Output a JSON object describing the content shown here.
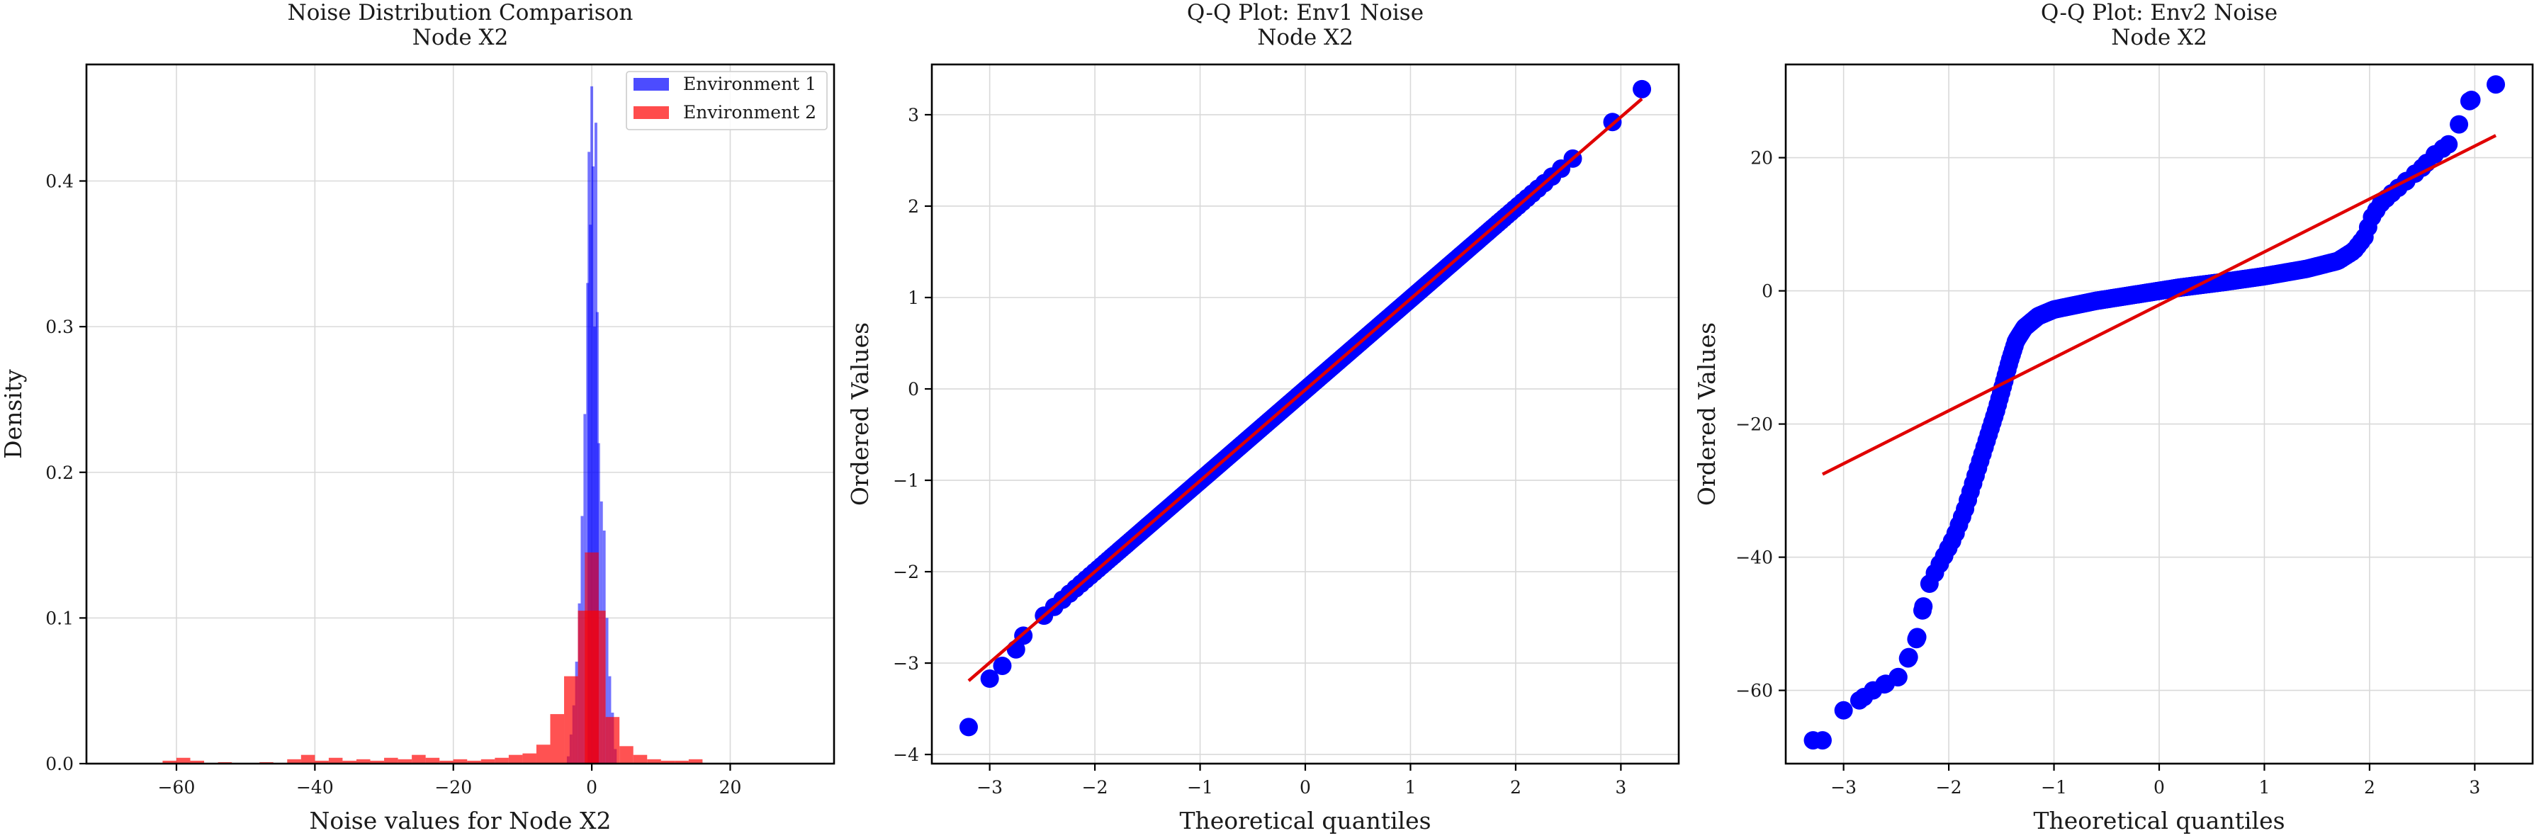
{
  "chart_data": [
    {
      "type": "histogram",
      "title": "Noise Distribution Comparison",
      "subtitle": "Node X2",
      "xlabel": "Noise values for Node X2",
      "ylabel": "Density",
      "xlim": [
        -73,
        35
      ],
      "ylim": [
        0,
        0.48
      ],
      "xticks": [
        -60,
        -40,
        -20,
        0,
        20
      ],
      "yticks": [
        0.0,
        0.1,
        0.2,
        0.3,
        0.4
      ],
      "xtick_labels": [
        "−60",
        "−40",
        "−20",
        "0",
        "20"
      ],
      "ytick_labels": [
        "0.0",
        "0.1",
        "0.2",
        "0.3",
        "0.4"
      ],
      "legend_position": "top-right",
      "series": [
        {
          "name": "Environment 1",
          "color": "#0000ff",
          "bins": [
            [
              -3.4,
              0.005
            ],
            [
              -3.0,
              0.02
            ],
            [
              -2.6,
              0.04
            ],
            [
              -2.2,
              0.07
            ],
            [
              -1.8,
              0.11
            ],
            [
              -1.4,
              0.17
            ],
            [
              -1.0,
              0.24
            ],
            [
              -0.6,
              0.33
            ],
            [
              -0.4,
              0.42
            ],
            [
              -0.2,
              0.37
            ],
            [
              0.0,
              0.465
            ],
            [
              0.2,
              0.41
            ],
            [
              0.4,
              0.3
            ],
            [
              0.6,
              0.44
            ],
            [
              0.8,
              0.31
            ],
            [
              1.0,
              0.22
            ],
            [
              1.4,
              0.18
            ],
            [
              1.8,
              0.16
            ],
            [
              2.2,
              0.1
            ],
            [
              2.6,
              0.06
            ],
            [
              3.0,
              0.035
            ],
            [
              3.4,
              0.01
            ]
          ],
          "bin_width": 0.4
        },
        {
          "name": "Environment 2",
          "color": "#ff0000",
          "bins": [
            [
              -61,
              0.002
            ],
            [
              -59,
              0.004
            ],
            [
              -57,
              0.002
            ],
            [
              -53,
              0.001
            ],
            [
              -47,
              0.001
            ],
            [
              -43,
              0.003
            ],
            [
              -41,
              0.006
            ],
            [
              -39,
              0.002
            ],
            [
              -37,
              0.004
            ],
            [
              -35,
              0.002
            ],
            [
              -33,
              0.003
            ],
            [
              -31,
              0.002
            ],
            [
              -29,
              0.004
            ],
            [
              -27,
              0.003
            ],
            [
              -25,
              0.006
            ],
            [
              -23,
              0.004
            ],
            [
              -21,
              0.002
            ],
            [
              -19,
              0.003
            ],
            [
              -17,
              0.002
            ],
            [
              -15,
              0.003
            ],
            [
              -13,
              0.004
            ],
            [
              -11,
              0.006
            ],
            [
              -9,
              0.007
            ],
            [
              -7,
              0.013
            ],
            [
              -5,
              0.034
            ],
            [
              -3,
              0.06
            ],
            [
              -1,
              0.105
            ],
            [
              1,
              0.105
            ],
            [
              3,
              0.032
            ],
            [
              5,
              0.012
            ],
            [
              7,
              0.006
            ],
            [
              9,
              0.003
            ],
            [
              11,
              0.002
            ],
            [
              13,
              0.002
            ],
            [
              15,
              0.003
            ]
          ],
          "bin_width": 2,
          "peak": {
            "x": 0,
            "width": 2,
            "value": 0.145
          }
        }
      ]
    },
    {
      "type": "scatter",
      "title": "Q-Q Plot: Env1 Noise",
      "subtitle": "Node X2",
      "xlabel": "Theoretical quantiles",
      "ylabel": "Ordered Values",
      "xlim": [
        -3.55,
        3.55
      ],
      "ylim": [
        -4.1,
        3.55
      ],
      "xticks": [
        -3,
        -2,
        -1,
        0,
        1,
        2,
        3
      ],
      "yticks": [
        -4,
        -3,
        -2,
        -1,
        0,
        1,
        2,
        3
      ],
      "xtick_labels": [
        "−3",
        "−2",
        "−1",
        "0",
        "1",
        "2",
        "3"
      ],
      "ytick_labels": [
        "−4",
        "−3",
        "−2",
        "−1",
        "0",
        "1",
        "2",
        "3"
      ],
      "n": 1000,
      "points_color": "#0000ff",
      "line_color": "#e00000",
      "fit_line": {
        "slope": 0.995,
        "intercept": -0.01
      },
      "deviations": [
        [
          -3.2,
          -3.7
        ],
        [
          -3.0,
          -3.17
        ],
        [
          -2.88,
          -3.03
        ],
        [
          -2.75,
          -2.85
        ],
        [
          -2.68,
          -2.7
        ],
        [
          3.2,
          3.28
        ],
        [
          2.92,
          2.92
        ]
      ],
      "qq_model": {
        "kind": "normal",
        "scale": 0.995,
        "shift": -0.01
      }
    },
    {
      "type": "scatter",
      "title": "Q-Q Plot: Env2 Noise",
      "subtitle": "Node X2",
      "xlabel": "Theoretical quantiles",
      "ylabel": "Ordered Values",
      "xlim": [
        -3.55,
        3.55
      ],
      "ylim": [
        -71,
        34
      ],
      "xticks": [
        -3,
        -2,
        -1,
        0,
        1,
        2,
        3
      ],
      "yticks": [
        -60,
        -40,
        -20,
        0,
        20
      ],
      "xtick_labels": [
        "−3",
        "−2",
        "−1",
        "0",
        "1",
        "2",
        "3"
      ],
      "ytick_labels": [
        "−60",
        "−40",
        "−20",
        "0",
        "20"
      ],
      "n": 1000,
      "points_color": "#0000ff",
      "line_color": "#e00000",
      "fit_line": {
        "slope": 7.95,
        "intercept": -2.1
      },
      "qq_curve": [
        [
          -3.2,
          -67.5
        ],
        [
          -3.0,
          -63
        ],
        [
          -2.85,
          -61.5
        ],
        [
          -2.72,
          -60
        ],
        [
          -2.6,
          -59
        ],
        [
          -2.48,
          -58
        ],
        [
          -2.38,
          -55
        ],
        [
          -2.3,
          -52
        ],
        [
          -2.25,
          -48
        ],
        [
          -2.2,
          -44.5
        ],
        [
          -2.12,
          -42
        ],
        [
          -2.05,
          -40
        ],
        [
          -1.95,
          -37
        ],
        [
          -1.85,
          -33
        ],
        [
          -1.75,
          -28
        ],
        [
          -1.65,
          -23
        ],
        [
          -1.55,
          -18
        ],
        [
          -1.48,
          -14
        ],
        [
          -1.42,
          -10.5
        ],
        [
          -1.36,
          -7.5
        ],
        [
          -1.28,
          -5.5
        ],
        [
          -1.15,
          -3.8
        ],
        [
          -1.0,
          -2.8
        ],
        [
          -0.6,
          -1.5
        ],
        [
          -0.2,
          -0.5
        ],
        [
          0.2,
          0.5
        ],
        [
          0.6,
          1.3
        ],
        [
          1.0,
          2.2
        ],
        [
          1.4,
          3.3
        ],
        [
          1.7,
          4.5
        ],
        [
          1.85,
          6
        ],
        [
          1.95,
          8
        ],
        [
          2.02,
          11
        ],
        [
          2.1,
          13
        ],
        [
          2.2,
          14.5
        ],
        [
          2.35,
          16.5
        ],
        [
          2.5,
          18.5
        ],
        [
          2.62,
          20.5
        ],
        [
          2.75,
          22
        ],
        [
          2.85,
          25
        ],
        [
          2.95,
          28.5
        ],
        [
          3.2,
          31
        ]
      ]
    }
  ]
}
